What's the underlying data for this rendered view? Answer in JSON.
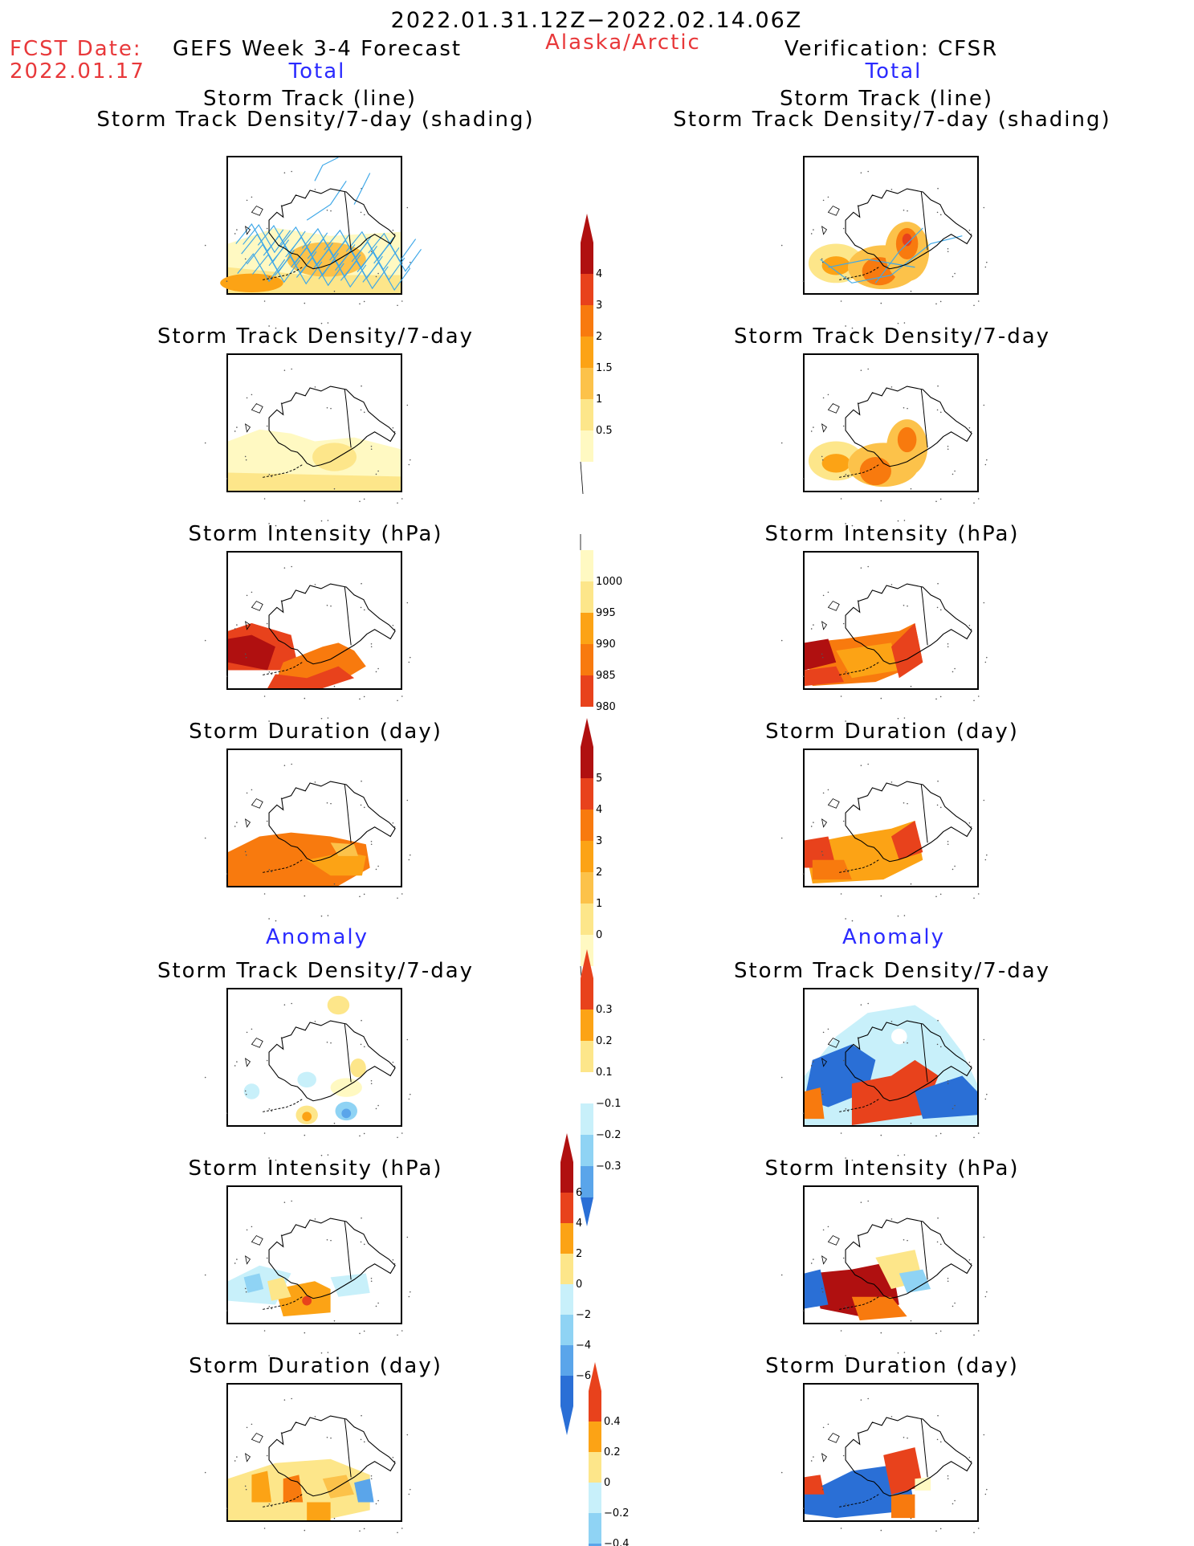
{
  "header": {
    "period": "2022.01.31.12Z−2022.02.14.06Z",
    "fcst_label": "FCST Date:",
    "fcst_date": "2022.01.17",
    "model": "GEFS Week 3-4 Forecast",
    "region": "Alaska/Arctic",
    "verification": "Verification: CFSR"
  },
  "columns": {
    "left_total": "Total",
    "right_total": "Total",
    "left_anomaly": "Anomaly",
    "right_anomaly": "Anomaly"
  },
  "panel_titles": {
    "track_line": "Storm Track (line)",
    "track_shading": "Storm Track Density/7-day (shading)",
    "density": "Storm Track Density/7-day",
    "intensity": "Storm Intensity (hPa)",
    "duration": "Storm Duration (day)"
  },
  "colors": {
    "title_red": "#e8383a",
    "label_blue": "#2a2aff",
    "warm": [
      "#fff9c2",
      "#fde68a",
      "#fcc24a",
      "#fca315",
      "#f87a0e",
      "#e8421c",
      "#b01010"
    ],
    "cool": [
      "#c8f0fa",
      "#8fd3f4",
      "#5aa5ea",
      "#2a6fd6"
    ],
    "track_line": "#3fa8e8"
  },
  "chart_data": [
    {
      "type": "heatmap",
      "name": "density_total_colorbar",
      "levels": [
        "4",
        "3",
        "2",
        "1.5",
        "1",
        "0.5"
      ]
    },
    {
      "type": "heatmap",
      "name": "intensity_total_colorbar",
      "levels": [
        "1000",
        "995",
        "990",
        "985",
        "980"
      ]
    },
    {
      "type": "heatmap",
      "name": "duration_total_colorbar",
      "levels": [
        "5",
        "4",
        "3",
        "2",
        "1",
        "0"
      ]
    },
    {
      "type": "heatmap",
      "name": "density_anomaly_colorbar",
      "levels": [
        "0.3",
        "0.2",
        "0.1",
        "−0.1",
        "−0.2",
        "−0.3"
      ]
    },
    {
      "type": "heatmap",
      "name": "intensity_anomaly_colorbar",
      "levels": [
        "6",
        "4",
        "2",
        "0",
        "−2",
        "−4",
        "−6"
      ]
    },
    {
      "type": "heatmap",
      "name": "duration_anomaly_colorbar",
      "levels": [
        "0.4",
        "0.2",
        "0",
        "−0.2",
        "−0.4"
      ]
    }
  ]
}
